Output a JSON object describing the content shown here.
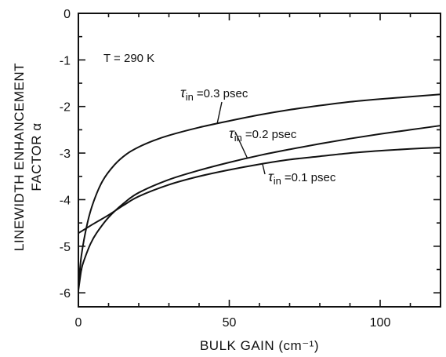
{
  "chart_data": {
    "type": "line",
    "annotation": "T = 290 K",
    "xlabel": "BULK GAIN (cm⁻¹)",
    "ylabel_line1": "LINEWIDTH ENHANCEMENT",
    "ylabel_line2": "FACTOR α",
    "xlim": [
      0,
      120
    ],
    "ylim": [
      -6.3,
      0
    ],
    "x_ticks": [
      0,
      50,
      100
    ],
    "x_tick_labels": [
      "0",
      "50",
      "100"
    ],
    "y_ticks": [
      0,
      -1,
      -2,
      -3,
      -4,
      -5,
      -6
    ],
    "y_tick_labels": [
      "0",
      "-1",
      "-2",
      "-3",
      "-4",
      "-5",
      "-6"
    ],
    "series": [
      {
        "name": "τin = 0.3 psec",
        "label_main": "τ",
        "label_sub": "in",
        "label_rest": "=0.3 psec",
        "x": [
          0,
          1,
          3,
          5,
          8,
          12,
          16,
          20,
          25,
          30,
          40,
          50,
          60,
          70,
          80,
          90,
          100,
          110,
          120
        ],
        "y": [
          -5.9,
          -5.2,
          -4.5,
          -4.05,
          -3.6,
          -3.25,
          -3.02,
          -2.87,
          -2.73,
          -2.62,
          -2.45,
          -2.31,
          -2.18,
          -2.07,
          -1.98,
          -1.9,
          -1.84,
          -1.79,
          -1.74
        ]
      },
      {
        "name": "τin = 0.2 psec",
        "label_main": "τ",
        "label_sub": "in",
        "label_rest": "=0.2 psec",
        "x": [
          0,
          1,
          2,
          4,
          6,
          10,
          15,
          20,
          30,
          40,
          50,
          60,
          70,
          80,
          90,
          100,
          110,
          120
        ],
        "y": [
          -5.95,
          -5.5,
          -5.28,
          -4.95,
          -4.72,
          -4.38,
          -4.08,
          -3.85,
          -3.57,
          -3.37,
          -3.2,
          -3.05,
          -2.92,
          -2.8,
          -2.69,
          -2.59,
          -2.5,
          -2.41
        ]
      },
      {
        "name": "τin = 0.1 psec",
        "label_main": "τ",
        "label_sub": "in",
        "label_rest": "=0.1 psec",
        "x": [
          0,
          5,
          10,
          15,
          20,
          30,
          40,
          50,
          60,
          70,
          80,
          90,
          100,
          110,
          120
        ],
        "y": [
          -4.72,
          -4.52,
          -4.33,
          -4.12,
          -3.93,
          -3.68,
          -3.5,
          -3.36,
          -3.24,
          -3.14,
          -3.07,
          -3.0,
          -2.95,
          -2.91,
          -2.88
        ]
      }
    ]
  }
}
